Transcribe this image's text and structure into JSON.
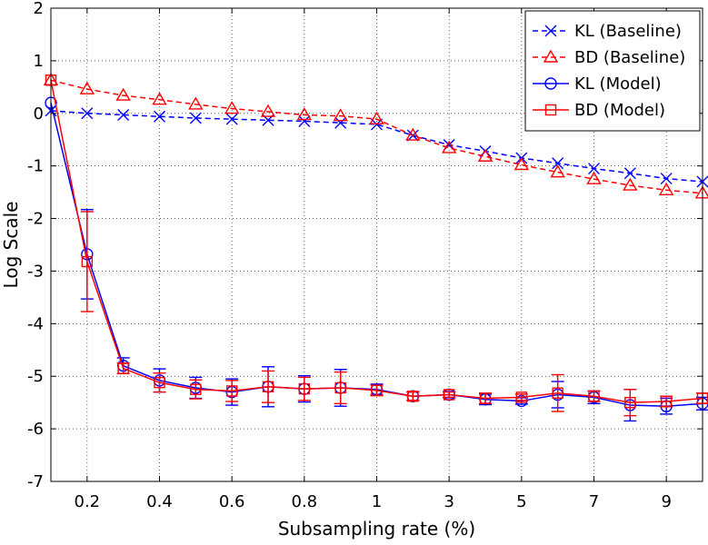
{
  "chart_data": {
    "type": "line",
    "title": "",
    "xlabel": "Subsampling rate (%)",
    "ylabel": "Log Scale",
    "x_positions": [
      0,
      1,
      2,
      3,
      4,
      5,
      6,
      7,
      8,
      9,
      10,
      11,
      12,
      13,
      14,
      15,
      16,
      17,
      18
    ],
    "x_tick_labels": [
      {
        "pos": 1,
        "label": "0.2"
      },
      {
        "pos": 3,
        "label": "0.4"
      },
      {
        "pos": 5,
        "label": "0.6"
      },
      {
        "pos": 7,
        "label": "0.8"
      },
      {
        "pos": 9,
        "label": "1"
      },
      {
        "pos": 11,
        "label": "3"
      },
      {
        "pos": 13,
        "label": "5"
      },
      {
        "pos": 15,
        "label": "7"
      },
      {
        "pos": 17,
        "label": "9"
      }
    ],
    "xlim": [
      0,
      18
    ],
    "ylim": [
      -7,
      2
    ],
    "y_ticks": [
      2,
      1,
      0,
      -1,
      -2,
      -3,
      -4,
      -5,
      -6,
      -7
    ],
    "grid": true,
    "legend_position": "top-right",
    "series": [
      {
        "name": "KL (Baseline)",
        "color": "#0000ff",
        "dash": "dashed",
        "marker": "x",
        "values": [
          0.05,
          0.0,
          -0.03,
          -0.06,
          -0.09,
          -0.11,
          -0.13,
          -0.15,
          -0.18,
          -0.21,
          -0.42,
          -0.6,
          -0.72,
          -0.85,
          -0.95,
          -1.05,
          -1.14,
          -1.24,
          -1.3
        ]
      },
      {
        "name": "BD (Baseline)",
        "color": "#ff0000",
        "dash": "dashed",
        "marker": "triangle",
        "values": [
          0.63,
          0.46,
          0.34,
          0.26,
          0.17,
          0.09,
          0.03,
          -0.03,
          -0.05,
          -0.11,
          -0.42,
          -0.66,
          -0.82,
          -0.98,
          -1.12,
          -1.25,
          -1.37,
          -1.46,
          -1.52
        ]
      },
      {
        "name": "KL (Model)",
        "color": "#0000ff",
        "dash": "solid",
        "marker": "circle",
        "values": [
          0.2,
          -2.68,
          -4.8,
          -5.08,
          -5.22,
          -5.3,
          -5.2,
          -5.24,
          -5.22,
          -5.25,
          -5.38,
          -5.35,
          -5.44,
          -5.47,
          -5.35,
          -5.4,
          -5.55,
          -5.57,
          -5.52
        ],
        "error": [
          0.0,
          0.85,
          0.15,
          0.22,
          0.2,
          0.25,
          0.38,
          0.25,
          0.35,
          0.1,
          0.08,
          0.06,
          0.1,
          0.06,
          0.25,
          0.12,
          0.3,
          0.15,
          0.12
        ]
      },
      {
        "name": "BD (Model)",
        "color": "#ff0000",
        "dash": "solid",
        "marker": "square",
        "values": [
          0.63,
          -2.82,
          -4.85,
          -5.12,
          -5.25,
          -5.28,
          -5.2,
          -5.24,
          -5.22,
          -5.27,
          -5.38,
          -5.35,
          -5.42,
          -5.4,
          -5.32,
          -5.38,
          -5.5,
          -5.48,
          -5.42
        ],
        "error": [
          0.0,
          0.95,
          0.1,
          0.18,
          0.18,
          0.2,
          0.3,
          0.22,
          0.3,
          0.1,
          0.08,
          0.05,
          0.1,
          0.06,
          0.35,
          0.1,
          0.25,
          0.1,
          0.1
        ]
      }
    ]
  }
}
